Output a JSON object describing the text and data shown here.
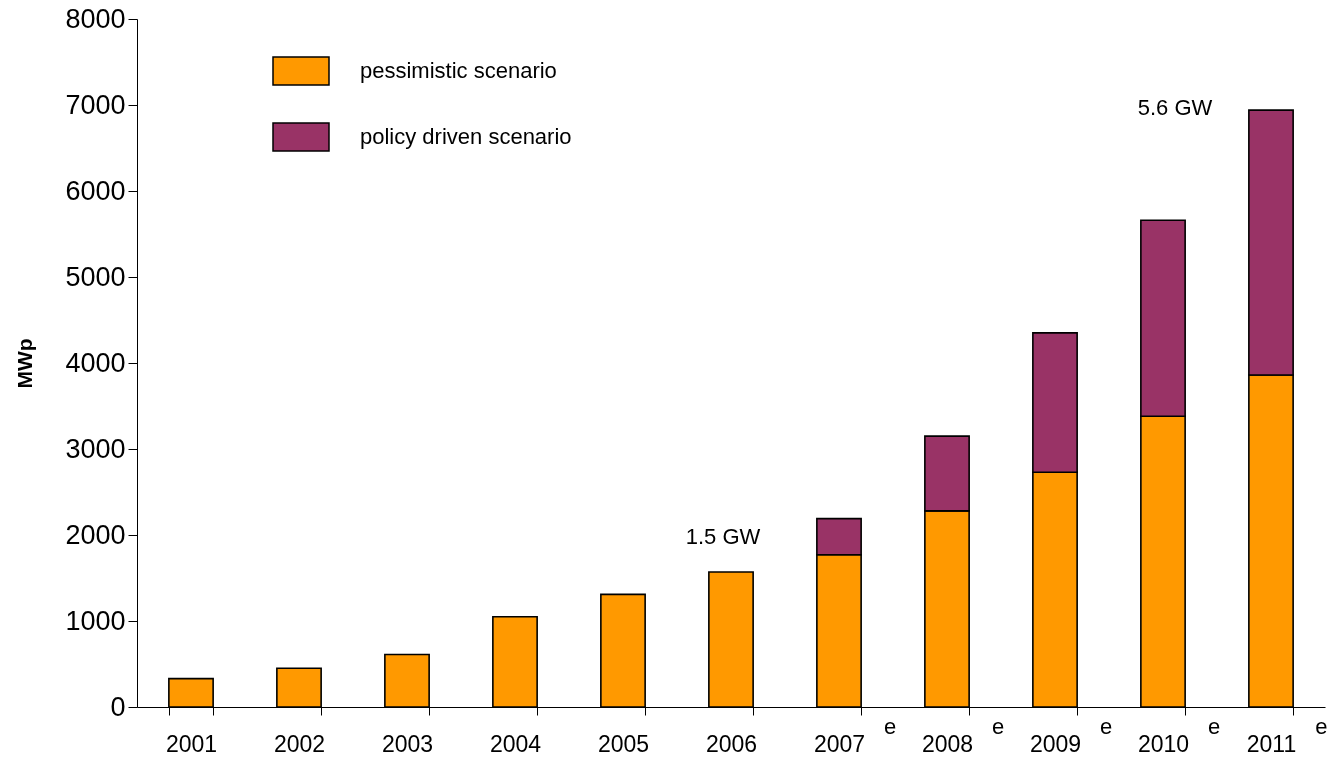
{
  "chart_data": {
    "type": "bar",
    "stacked": true,
    "categories": [
      "2001",
      "2002",
      "2003",
      "2004",
      "2005",
      "2006",
      "2007$^{e}$",
      "2008$^{e}$",
      "2009$^{e}$",
      "2010$^{e}$",
      "2011$^{e}$"
    ],
    "series": [
      {
        "name": "pessimistic scenario",
        "color": "#ff9900",
        "values": [
          330,
          450,
          610,
          1050,
          1310,
          1570,
          1770,
          2280,
          2730,
          3380,
          3860
        ]
      },
      {
        "name": "policy driven scenario",
        "color": "#993366",
        "values": [
          null,
          null,
          null,
          null,
          null,
          null,
          420,
          870,
          1620,
          2280,
          3080
        ]
      }
    ],
    "ylabel": "MWp",
    "ylim": [
      0,
      8000
    ],
    "yticks": [
      0,
      1000,
      2000,
      3000,
      4000,
      5000,
      6000,
      7000,
      8000
    ],
    "legend": "top left",
    "annotations": [
      "1.5 GW",
      "5.6 GW"
    ]
  }
}
